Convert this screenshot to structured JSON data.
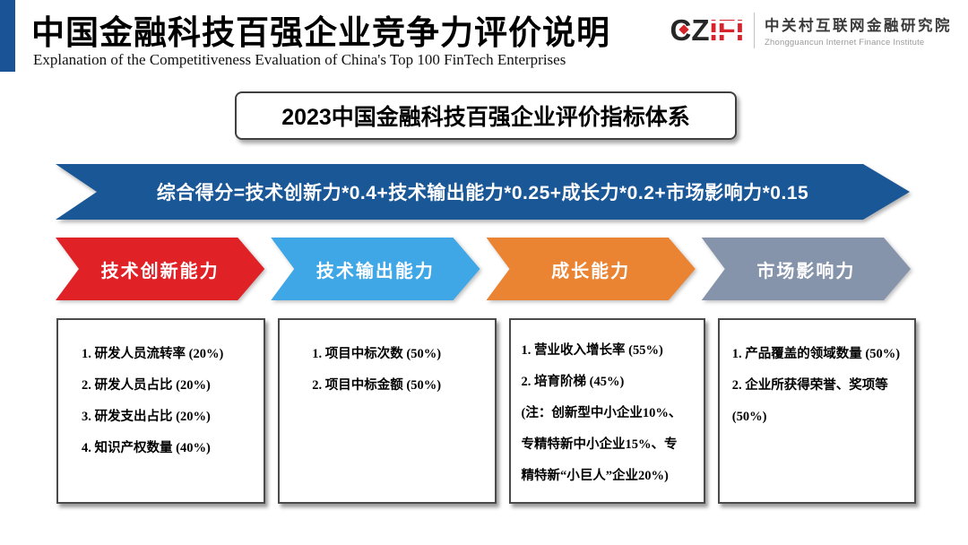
{
  "header": {
    "title": "中国金融科技百强企业竞争力评价说明",
    "subtitle": "Explanation of the Competitiveness Evaluation of China's Top 100 FinTech Enterprises",
    "accent_bar_color": "#1b5496"
  },
  "logo": {
    "wordmark_cz": "CZ",
    "wordmark_ifi": "IFI",
    "org_cn": "中关村互联网金融研究院",
    "org_en": "Zhongguancun Internet Finance Institute",
    "red": "#d7242a",
    "dark": "#262626"
  },
  "index_box": {
    "label": "2023中国金融科技百强企业评价指标体系"
  },
  "formula_banner": {
    "text": "综合得分=技术创新力*0.4+技术输出能力*0.25+成长力*0.2+市场影响力*0.15",
    "color": "#1a5796"
  },
  "categories": [
    {
      "label": "技术创新能力",
      "color": "#e02227",
      "items": [
        "1. 研发人员流转率 (20%)",
        "2. 研发人员占比 (20%)",
        "3. 研发支出占比 (20%)",
        "4. 知识产权数量 (40%)"
      ]
    },
    {
      "label": "技术输出能力",
      "color": "#3fa7e6",
      "items": [
        "1. 项目中标次数 (50%)",
        "2. 项目中标金额 (50%)"
      ]
    },
    {
      "label": "成长能力",
      "color": "#eb8432",
      "items": [
        "1. 营业收入增长率 (55%)",
        "2. 培育阶梯 (45%)",
        "(注：创新型中小企业10%、",
        "专精特新中小企业15%、专",
        "精特新“小巨人”企业20%)"
      ]
    },
    {
      "label": "市场影响力",
      "color": "#8694ab",
      "items": [
        "1. 产品覆盖的领域数量 (50%)",
        "2. 企业所获得荣誉、奖项等",
        "(50%)"
      ]
    }
  ]
}
